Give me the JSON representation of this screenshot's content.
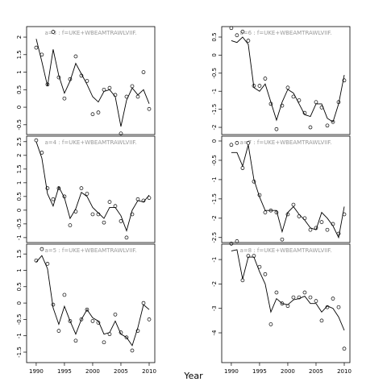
{
  "xlabel": "Year",
  "chart_data": [
    {
      "type": "line",
      "title": "a=3  :  f=UKE+WBEAMTRAWLVIIF.",
      "x": [
        1990,
        1991,
        1992,
        1993,
        1994,
        1995,
        1996,
        1997,
        1998,
        1999,
        2000,
        2001,
        2002,
        2003,
        2004,
        2005,
        2006,
        2007,
        2008,
        2009,
        2010
      ],
      "series": [
        {
          "color": "#000000",
          "marker": "none",
          "values": [
            1.95,
            1.3,
            0.6,
            1.65,
            0.9,
            0.4,
            0.75,
            1.25,
            0.95,
            0.65,
            0.3,
            0.15,
            0.45,
            0.5,
            0.3,
            -0.55,
            0.2,
            0.55,
            0.35,
            0.5,
            0.1
          ]
        },
        {
          "color": "#000000",
          "marker": "circle",
          "values": [
            1.7,
            1.5,
            0.65,
            2.15,
            0.85,
            0.25,
            0.8,
            1.45,
            0.9,
            0.75,
            -0.2,
            -0.15,
            0.5,
            0.55,
            0.35,
            -0.75,
            0.3,
            0.6,
            0.3,
            1.0,
            -0.05
          ]
        }
      ],
      "xlim": [
        1988.3,
        2011
      ],
      "ylim": [
        -0.78,
        2.3
      ],
      "yticks": [
        -0.5,
        0.0,
        0.5,
        1.0,
        1.5,
        2.0
      ]
    },
    {
      "type": "line",
      "title": "a=4  :  f=UKE+WBEAMTRAWLVIIF.",
      "x": [
        1990,
        1991,
        1992,
        1993,
        1994,
        1995,
        1996,
        1997,
        1998,
        1999,
        2000,
        2001,
        2002,
        2003,
        2004,
        2005,
        2006,
        2007,
        2008,
        2009,
        2010
      ],
      "series": [
        {
          "color": "#000000",
          "marker": "none",
          "values": [
            2.5,
            1.9,
            0.6,
            0.15,
            0.85,
            0.45,
            -0.3,
            0.05,
            0.65,
            0.5,
            0.1,
            -0.1,
            -0.3,
            0.1,
            0.1,
            -0.2,
            -0.75,
            0.0,
            0.35,
            0.3,
            0.55
          ]
        },
        {
          "color": "#000000",
          "marker": "circle",
          "values": [
            2.55,
            2.1,
            0.8,
            0.4,
            0.8,
            0.5,
            -0.55,
            -0.05,
            0.8,
            0.6,
            -0.15,
            -0.15,
            -0.45,
            0.3,
            0.15,
            -0.4,
            -1.0,
            -0.15,
            0.4,
            0.35,
            0.45
          ]
        }
      ],
      "xlim": [
        1988.3,
        2011
      ],
      "ylim": [
        -1.18,
        2.7
      ],
      "yticks": [
        -1.0,
        -0.5,
        0.0,
        0.5,
        1.0,
        1.5,
        2.0,
        2.5
      ]
    },
    {
      "type": "line",
      "title": "a=5  :  f=UKE+WBEAMTRAWLVIIF.",
      "x": [
        1990,
        1991,
        1992,
        1993,
        1994,
        1995,
        1996,
        1997,
        1998,
        1999,
        2000,
        2001,
        2002,
        2003,
        2004,
        2005,
        2006,
        2007,
        2008,
        2009,
        2010
      ],
      "series": [
        {
          "color": "#000000",
          "marker": "none",
          "values": [
            1.25,
            1.45,
            1.05,
            -0.15,
            -0.65,
            -0.1,
            -0.55,
            -0.95,
            -0.5,
            -0.2,
            -0.45,
            -0.55,
            -0.95,
            -0.9,
            -0.55,
            -0.95,
            -1.05,
            -1.3,
            -0.75,
            -0.05,
            -0.2
          ]
        },
        {
          "color": "#000000",
          "marker": "circle",
          "values": [
            1.3,
            1.65,
            1.2,
            -0.05,
            -0.85,
            0.25,
            -0.55,
            -1.15,
            -0.5,
            -0.2,
            -0.55,
            -0.6,
            -1.2,
            -0.95,
            -0.35,
            -0.9,
            -1.05,
            -1.45,
            -0.85,
            0.0,
            -0.5
          ]
        }
      ],
      "xlim": [
        1988.3,
        2011
      ],
      "ylim": [
        -1.82,
        1.8
      ],
      "yticks": [
        -1.5,
        -1.0,
        -0.5,
        0.0,
        0.5,
        1.0,
        1.5
      ],
      "xticks": [
        1990,
        1995,
        2000,
        2005,
        2010
      ]
    },
    {
      "type": "line",
      "title": "a=6  :  f=UKE+WBEAMTRAWLVIIF.",
      "x": [
        1990,
        1991,
        1992,
        1993,
        1994,
        1995,
        1996,
        1997,
        1998,
        1999,
        2000,
        2001,
        2002,
        2003,
        2004,
        2005,
        2006,
        2007,
        2008,
        2009,
        2010
      ],
      "series": [
        {
          "color": "#000000",
          "marker": "none",
          "values": [
            0.4,
            0.35,
            0.5,
            0.3,
            -0.9,
            -1.0,
            -0.8,
            -1.3,
            -1.8,
            -1.3,
            -0.95,
            -1.05,
            -1.35,
            -1.65,
            -1.7,
            -1.35,
            -1.35,
            -1.75,
            -1.85,
            -1.35,
            -0.55
          ]
        },
        {
          "color": "#000000",
          "marker": "circle",
          "values": [
            0.75,
            0.55,
            0.65,
            0.4,
            -0.85,
            -0.85,
            -0.65,
            -1.35,
            -2.05,
            -1.4,
            -0.9,
            -1.15,
            -1.25,
            -1.6,
            -2.0,
            -1.3,
            -1.45,
            -1.95,
            -1.85,
            -1.3,
            -0.7
          ]
        }
      ],
      "xlim": [
        1988.3,
        2011
      ],
      "ylim": [
        -2.2,
        0.79
      ],
      "yticks": [
        -2.0,
        -1.5,
        -1.0,
        -0.5,
        0.0,
        0.5
      ]
    },
    {
      "type": "line",
      "title": "a=7  :  f=UKE+WBEAMTRAWLVIIF.",
      "x": [
        1990,
        1991,
        1992,
        1993,
        1994,
        1995,
        1996,
        1997,
        1998,
        1999,
        2000,
        2001,
        2002,
        2003,
        2004,
        2005,
        2006,
        2007,
        2008,
        2009,
        2010
      ],
      "series": [
        {
          "color": "#000000",
          "marker": "none",
          "values": [
            -0.3,
            -0.3,
            -0.65,
            -0.1,
            -1.0,
            -1.45,
            -1.8,
            -1.8,
            -1.8,
            -2.35,
            -1.85,
            -1.7,
            -1.9,
            -2.05,
            -2.25,
            -2.3,
            -1.85,
            -2.0,
            -2.2,
            -2.5,
            -1.7
          ]
        },
        {
          "color": "#000000",
          "marker": "circle",
          "values": [
            -0.1,
            -0.05,
            -0.7,
            -0.05,
            -1.05,
            -1.4,
            -1.85,
            -1.8,
            -1.85,
            -2.55,
            -1.9,
            -1.65,
            -1.95,
            -2.0,
            -2.3,
            -2.25,
            -2.1,
            -2.3,
            -2.15,
            -2.4,
            -1.9
          ]
        }
      ],
      "xlim": [
        1988.3,
        2011
      ],
      "ylim": [
        -2.63,
        0.125
      ],
      "yticks": [
        -2.5,
        -2.0,
        -1.5,
        -1.0,
        -0.5,
        0.0
      ]
    },
    {
      "type": "line",
      "title": "a=8  :  f=UKE+WBEAMTRAWLVIIF.",
      "x": [
        1990,
        1991,
        1992,
        1993,
        1994,
        1995,
        1996,
        1997,
        1998,
        1999,
        2000,
        2001,
        2002,
        2003,
        2004,
        2005,
        2006,
        2007,
        2008,
        2009,
        2010
      ],
      "series": [
        {
          "color": "#000000",
          "marker": "none",
          "values": [
            -0.65,
            -0.6,
            -1.8,
            -0.9,
            -0.9,
            -1.5,
            -2.0,
            -3.15,
            -2.6,
            -2.8,
            -2.85,
            -2.65,
            -2.6,
            -2.5,
            -2.8,
            -2.8,
            -3.15,
            -2.9,
            -3.0,
            -3.35,
            -3.9
          ]
        },
        {
          "color": "#000000",
          "marker": "circle",
          "values": [
            -0.35,
            -0.25,
            -1.85,
            -0.85,
            -0.85,
            -1.3,
            -1.6,
            -3.65,
            -2.35,
            -2.8,
            -2.9,
            -2.55,
            -2.55,
            -2.35,
            -2.55,
            -2.7,
            -3.5,
            -2.95,
            -2.6,
            -2.95,
            -4.65
          ]
        }
      ],
      "xlim": [
        1988.3,
        2011
      ],
      "ylim": [
        -5.22,
        -0.37
      ],
      "yticks": [
        -4,
        -3,
        -2,
        -1
      ],
      "xticks": [
        1990,
        1995,
        2000,
        2005,
        2010
      ]
    }
  ]
}
